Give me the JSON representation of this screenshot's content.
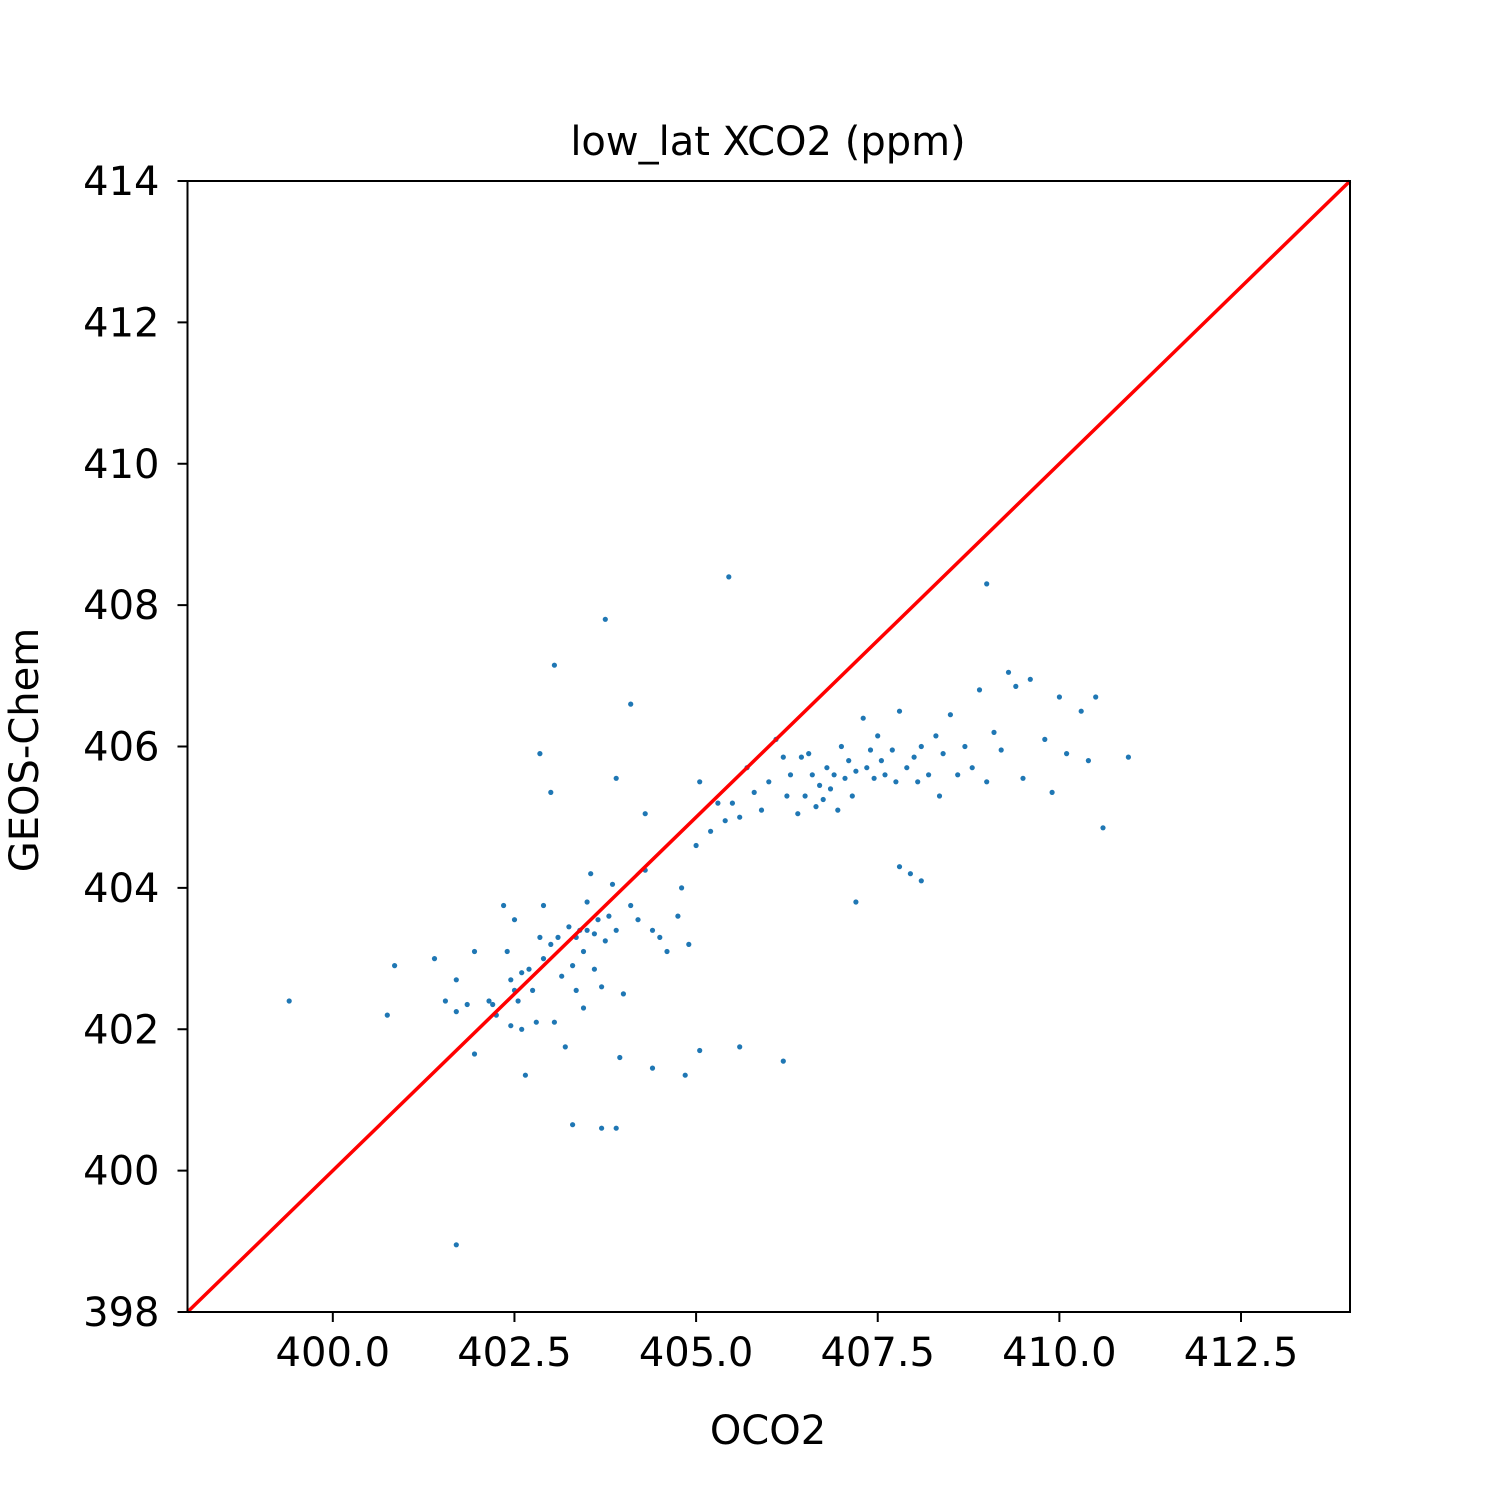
{
  "chart_data": {
    "type": "scatter",
    "title": "low_lat XCO2 (ppm)",
    "xlabel": "OCO2",
    "ylabel": "GEOS-Chem",
    "xlim": [
      398,
      414
    ],
    "ylim": [
      398,
      414
    ],
    "xticks": [
      400.0,
      402.5,
      405.0,
      407.5,
      410.0,
      412.5
    ],
    "xtick_labels": [
      "400.0",
      "402.5",
      "405.0",
      "407.5",
      "410.0",
      "412.5"
    ],
    "yticks": [
      398,
      400,
      402,
      404,
      406,
      408,
      410,
      412,
      414
    ],
    "ytick_labels": [
      "398",
      "400",
      "402",
      "404",
      "406",
      "408",
      "410",
      "412",
      "414"
    ],
    "grid": false,
    "legend": null,
    "colors": {
      "points": "#1f77b4",
      "reference_line": "#ff0000"
    },
    "reference_line": {
      "x": [
        398,
        414
      ],
      "y": [
        398,
        414
      ]
    },
    "series": [
      {
        "x": [
          399.4,
          400.75,
          400.85,
          401.4,
          401.55,
          401.7,
          401.7,
          401.85,
          401.95,
          401.95,
          402.15,
          402.2,
          402.25,
          402.35,
          402.4,
          402.45,
          402.45,
          402.5,
          402.5,
          402.55,
          402.6,
          402.6,
          402.7,
          402.75,
          402.8,
          402.85,
          402.9,
          402.9,
          403.0,
          403.05,
          403.1,
          403.15,
          403.2,
          403.25,
          403.3,
          403.35,
          403.35,
          403.4,
          403.45,
          403.45,
          403.5,
          403.5,
          403.55,
          403.6,
          403.6,
          403.65,
          403.7,
          403.75,
          403.8,
          403.85,
          403.9,
          404.0,
          404.1,
          404.2,
          404.3,
          404.4,
          404.5,
          404.6,
          404.75,
          404.8,
          404.9,
          405.0,
          405.05,
          405.2,
          405.3,
          405.4,
          405.5,
          405.6,
          405.7,
          405.8,
          405.9,
          406.0,
          406.1,
          406.2,
          406.25,
          406.3,
          406.4,
          406.45,
          406.5,
          406.55,
          406.6,
          406.65,
          406.7,
          406.75,
          406.8,
          406.85,
          406.9,
          406.95,
          407.0,
          407.05,
          407.1,
          407.15,
          407.2,
          407.3,
          407.35,
          407.4,
          407.45,
          407.5,
          407.55,
          407.6,
          407.7,
          407.75,
          407.8,
          407.9,
          408.0,
          408.05,
          408.1,
          408.2,
          408.3,
          408.35,
          408.4,
          408.5,
          408.6,
          408.7,
          408.8,
          408.9,
          409.0,
          409.1,
          409.2,
          409.3,
          409.4,
          409.5,
          409.6,
          409.8,
          409.9,
          410.0,
          410.1,
          410.3,
          410.4,
          410.5,
          410.6,
          410.95,
          405.45,
          403.75,
          403.05,
          409.0,
          402.85,
          404.1,
          403.0,
          403.9,
          404.3,
          401.7,
          403.3,
          403.7,
          403.9,
          405.6,
          406.2,
          407.2,
          407.95,
          407.8,
          408.1,
          402.65,
          403.95,
          404.4,
          404.85,
          405.05
        ],
        "y": [
          402.4,
          402.2,
          402.9,
          403.0,
          402.4,
          402.25,
          402.7,
          402.35,
          401.65,
          403.1,
          402.4,
          402.35,
          402.2,
          403.75,
          403.1,
          402.7,
          402.05,
          402.55,
          403.55,
          402.4,
          402.8,
          402.0,
          402.85,
          402.55,
          402.1,
          403.3,
          403.0,
          403.75,
          403.2,
          402.1,
          403.3,
          402.75,
          401.75,
          403.45,
          402.9,
          403.3,
          402.55,
          403.4,
          403.1,
          402.3,
          403.8,
          403.4,
          404.2,
          403.35,
          402.85,
          403.55,
          402.6,
          403.25,
          403.6,
          404.05,
          403.4,
          402.5,
          403.75,
          403.55,
          404.25,
          403.4,
          403.3,
          403.1,
          403.6,
          404.0,
          403.2,
          404.6,
          405.5,
          404.8,
          405.2,
          404.95,
          405.2,
          405.0,
          405.7,
          405.35,
          405.1,
          405.5,
          406.1,
          405.85,
          405.3,
          405.6,
          405.05,
          405.85,
          405.3,
          405.9,
          405.6,
          405.15,
          405.45,
          405.25,
          405.7,
          405.4,
          405.6,
          405.1,
          406.0,
          405.55,
          405.8,
          405.3,
          405.65,
          406.4,
          405.7,
          405.95,
          405.55,
          406.15,
          405.8,
          405.6,
          405.95,
          405.5,
          406.5,
          405.7,
          405.85,
          405.5,
          406.0,
          405.6,
          406.15,
          405.3,
          405.9,
          406.45,
          405.6,
          406.0,
          405.7,
          406.8,
          405.5,
          406.2,
          405.95,
          407.05,
          406.85,
          405.55,
          406.95,
          406.1,
          405.35,
          406.7,
          405.9,
          406.5,
          405.8,
          406.7,
          404.85,
          405.85,
          408.4,
          407.8,
          407.15,
          408.3,
          405.9,
          406.6,
          405.35,
          405.55,
          405.05,
          398.95,
          400.65,
          400.6,
          400.6,
          401.75,
          401.55,
          403.8,
          404.2,
          404.3,
          404.1,
          401.35,
          401.6,
          401.45,
          401.35,
          401.7
        ]
      }
    ]
  }
}
